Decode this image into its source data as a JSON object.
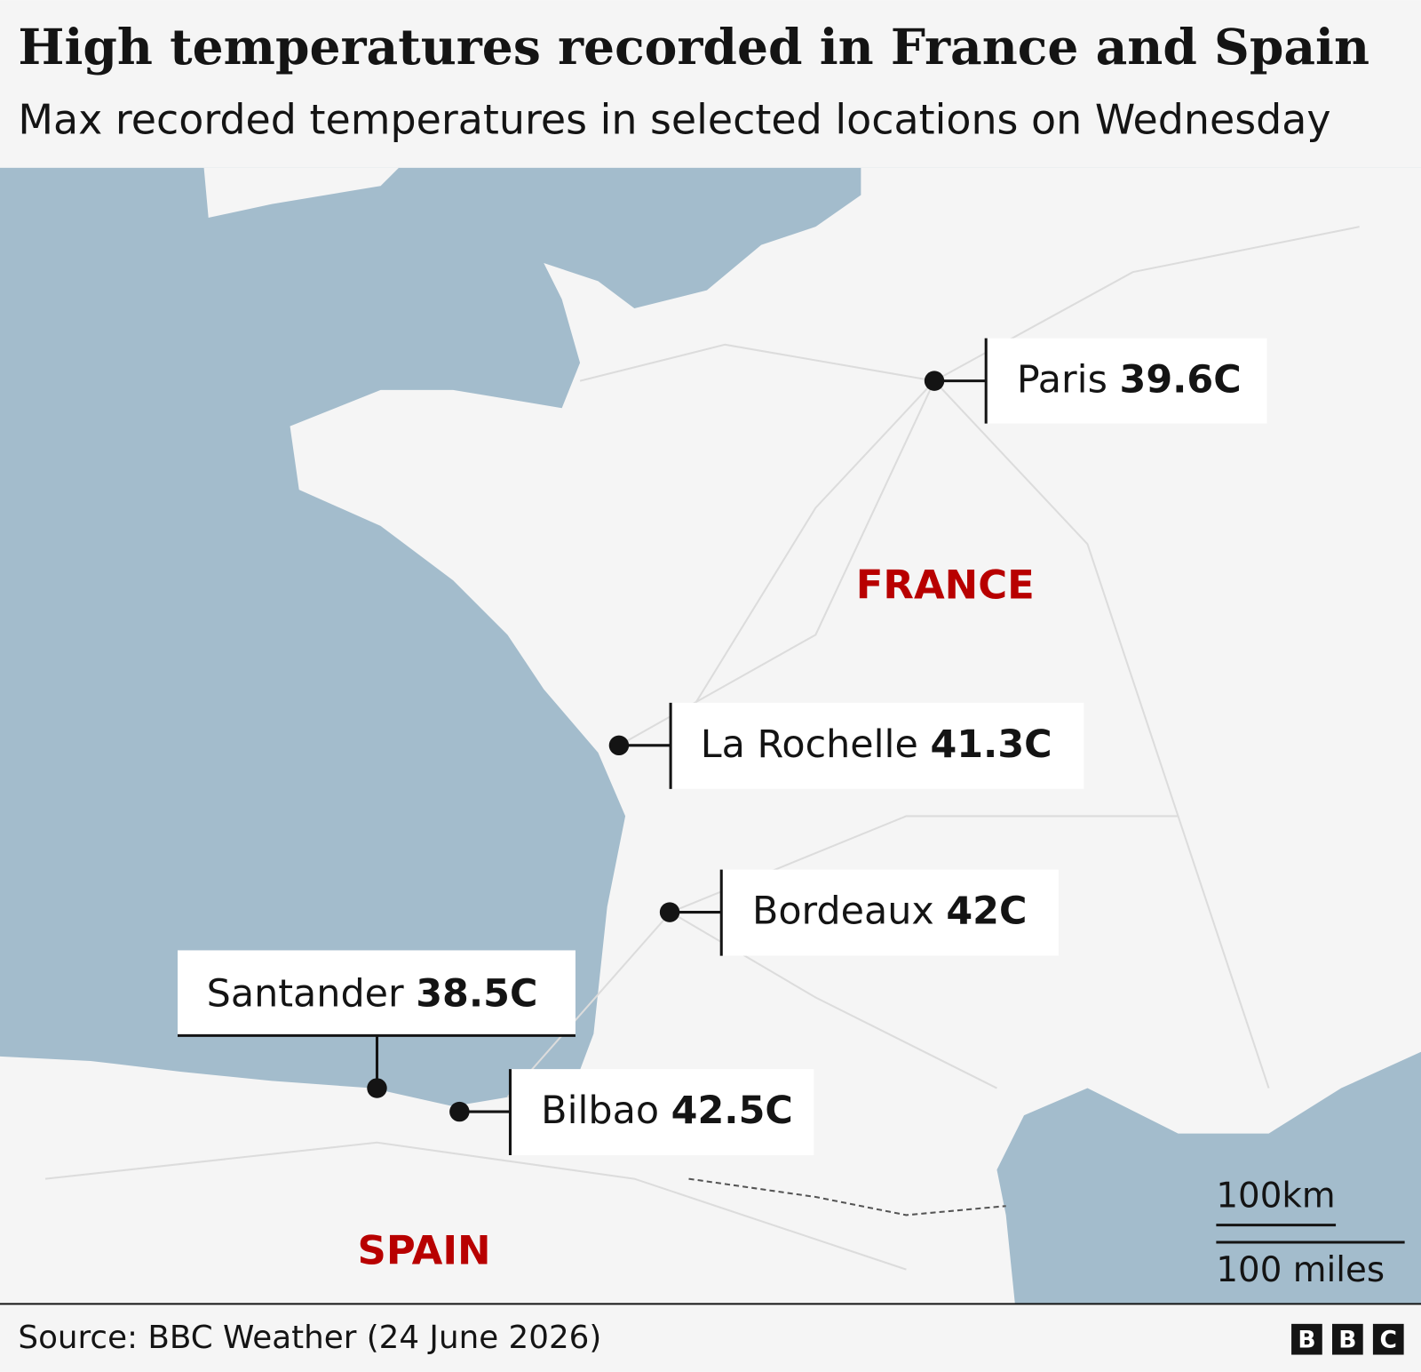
{
  "header": {
    "title": "High temperatures recorded in France and Spain",
    "subtitle": "Max recorded temperatures in selected locations on Wednesday"
  },
  "map": {
    "countries": [
      "FRANCE",
      "SPAIN"
    ],
    "locations": [
      {
        "name": "Paris",
        "temperature": "39.6C"
      },
      {
        "name": "La Rochelle",
        "temperature": "41.3C"
      },
      {
        "name": "Bordeaux",
        "temperature": "42C"
      },
      {
        "name": "Santander",
        "temperature": "38.5C"
      },
      {
        "name": "Bilbao",
        "temperature": "42.5C"
      }
    ],
    "scale": {
      "metric": "100km",
      "imperial": "100 miles"
    }
  },
  "footer": {
    "source": "Source: BBC Weather (24 June 2026)",
    "logo": [
      "B",
      "B",
      "C"
    ]
  }
}
